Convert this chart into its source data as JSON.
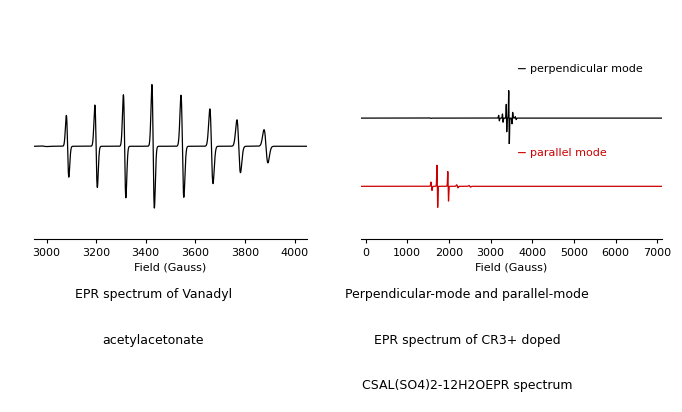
{
  "background_color": "#ffffff",
  "left_xlim": [
    2950,
    4050
  ],
  "right_xlim": [
    -100,
    7100
  ],
  "left_xticks": [
    3000,
    3200,
    3400,
    3600,
    3800,
    4000
  ],
  "right_xticks": [
    0,
    1000,
    2000,
    3000,
    4000,
    5000,
    6000,
    7000
  ],
  "xlabel": "Field (Gauss)",
  "left_caption_line1": "EPR spectrum of Vanadyl",
  "left_caption_line2": "acetylacetonate",
  "right_caption_line1": "Perpendicular-mode and parallel-mode",
  "right_caption_line2": "EPR spectrum of CR3+ doped",
  "right_caption_line3": "CSAL(SO4)2-12H2OEPR spectrum",
  "perp_label": "perpendicular mode",
  "para_label": "parallel mode",
  "perp_color": "#000000",
  "para_color": "#cc0000",
  "line_color": "#000000",
  "caption_fontsize": 9,
  "axis_fontsize": 8,
  "label_fontsize": 8
}
